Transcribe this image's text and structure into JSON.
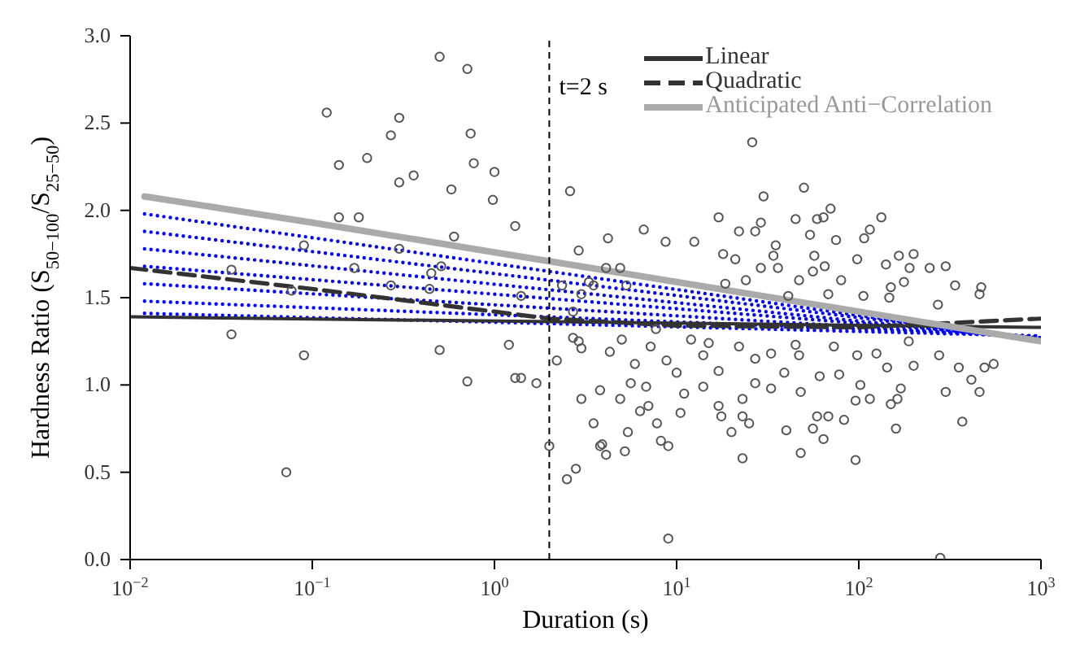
{
  "chart_data": {
    "type": "scatter",
    "xlabel": "Duration (s)",
    "ylabel": "Hardness Ratio (S$_{50−100}$/S$_{25−50}$)",
    "log": "x",
    "xlim": [
      0.01,
      1000
    ],
    "ylim": [
      0,
      3
    ],
    "xticks": [
      {
        "value": 0.01,
        "label": "10$^{−2}$"
      },
      {
        "value": 0.1,
        "label": "10$^{−1}$"
      },
      {
        "value": 1,
        "label": "10$^{0}$"
      },
      {
        "value": 10,
        "label": "10$^{1}$"
      },
      {
        "value": 100,
        "label": "10$^{2}$"
      },
      {
        "value": 1000,
        "label": "10$^{3}$"
      }
    ],
    "yticks": [
      {
        "value": 0,
        "label": "0.0"
      },
      {
        "value": 0.5,
        "label": "0.5"
      },
      {
        "value": 1,
        "label": "1.0"
      },
      {
        "value": 1.5,
        "label": "1.5"
      },
      {
        "value": 2,
        "label": "2.0"
      },
      {
        "value": 2.5,
        "label": "2.5"
      },
      {
        "value": 3,
        "label": "3.0"
      }
    ],
    "grid": false,
    "legend": "top right",
    "ref_lines": [
      {
        "axis": "x",
        "value": 2,
        "label": "t=2 s",
        "color": "#000000",
        "line_style": "dashed"
      }
    ],
    "series": [
      {
        "marker": "circle",
        "color": "#555555",
        "x": [
          0.12,
          0.14,
          0.2,
          0.27,
          0.3,
          0.3,
          0.36,
          0.5,
          0.71,
          0.74,
          0.77,
          0.58,
          1.0,
          0.98,
          1.3,
          0.14,
          0.18,
          0.09,
          0.6,
          0.3,
          0.036,
          0.17,
          0.27,
          0.45,
          0.51,
          0.44,
          0.077,
          1.4,
          2.6,
          2.9,
          2.35,
          3.0,
          3.3,
          2.7,
          0.036,
          0.09,
          0.072,
          0.5,
          1.2,
          0.71,
          1.3,
          1.4,
          1.7,
          2.0,
          2.2,
          2.5,
          2.8,
          2.7,
          2.9,
          3.0,
          3.0,
          3.5,
          3.8,
          3.8,
          26,
          30,
          50,
          70,
          64,
          59,
          133,
          17,
          29,
          27,
          45,
          54,
          115,
          22,
          6.6,
          4.2,
          8.7,
          12.5,
          35,
          75,
          107,
          18,
          21,
          34,
          57,
          166,
          200,
          98,
          141,
          245,
          300,
          190,
          4.1,
          4.9,
          29,
          36,
          56,
          65,
          338,
          470,
          177,
          150,
          272,
          460,
          47,
          80,
          24,
          3.5,
          5.3,
          18.5,
          41,
          68,
          106,
          147,
          4.3,
          5.0,
          7.2,
          5.9,
          8.8,
          10,
          12,
          14,
          17,
          22,
          27,
          33,
          47,
          39,
          61,
          78,
          98,
          125,
          143,
          200,
          276,
          354,
          490,
          550,
          415,
          460,
          300,
          370,
          170,
          150,
          160,
          96,
          83,
          96,
          64,
          59,
          68,
          56,
          48,
          40,
          48,
          33,
          27,
          23,
          25,
          23,
          20,
          17.6,
          23,
          14,
          11,
          10.5,
          9,
          8.2,
          7.8,
          7.0,
          6.3,
          5.4,
          4.9,
          5.2,
          4.1,
          3.9,
          9,
          5.6,
          6.8,
          17,
          163,
          115,
          102,
          280,
          45,
          73,
          188,
          15,
          7.7
        ],
        "values": [
          2.56,
          2.26,
          2.3,
          2.43,
          2.53,
          2.16,
          2.2,
          2.88,
          2.81,
          2.44,
          2.27,
          2.12,
          2.22,
          2.06,
          1.91,
          1.96,
          1.96,
          1.8,
          1.85,
          1.78,
          1.66,
          1.67,
          1.57,
          1.64,
          1.68,
          1.55,
          1.54,
          1.51,
          2.11,
          1.77,
          1.57,
          1.52,
          1.59,
          1.42,
          1.29,
          1.17,
          0.5,
          1.2,
          1.23,
          1.02,
          1.04,
          1.04,
          1.01,
          0.65,
          1.14,
          0.46,
          0.52,
          1.27,
          1.25,
          1.21,
          0.92,
          0.78,
          0.97,
          0.65,
          2.39,
          2.08,
          2.13,
          2.01,
          1.96,
          1.95,
          1.96,
          1.96,
          1.93,
          1.88,
          1.95,
          1.86,
          1.89,
          1.88,
          1.89,
          1.84,
          1.82,
          1.82,
          1.8,
          1.83,
          1.84,
          1.75,
          1.72,
          1.74,
          1.74,
          1.74,
          1.75,
          1.72,
          1.69,
          1.67,
          1.68,
          1.67,
          1.67,
          1.67,
          1.67,
          1.67,
          1.65,
          1.68,
          1.57,
          1.56,
          1.59,
          1.56,
          1.46,
          1.52,
          1.6,
          1.6,
          1.6,
          1.57,
          1.57,
          1.58,
          1.51,
          1.52,
          1.51,
          1.5,
          1.19,
          1.26,
          1.22,
          1.12,
          1.14,
          1.07,
          1.26,
          1.17,
          1.08,
          1.22,
          1.15,
          1.18,
          1.17,
          1.07,
          1.05,
          1.06,
          1.17,
          1.18,
          1.1,
          1.11,
          1.17,
          1.1,
          1.1,
          1.12,
          1.03,
          0.96,
          0.96,
          0.79,
          0.98,
          0.89,
          0.75,
          0.91,
          0.8,
          0.57,
          0.69,
          0.82,
          0.82,
          0.75,
          0.61,
          0.74,
          0.96,
          0.98,
          1.01,
          0.92,
          0.78,
          0.58,
          0.73,
          0.82,
          0.82,
          0.99,
          0.95,
          0.84,
          0.65,
          0.68,
          0.78,
          0.88,
          0.85,
          0.73,
          0.92,
          0.62,
          0.6,
          0.66,
          0.12,
          1.01,
          0.99,
          0.88,
          0.92,
          0.92,
          1.0,
          0.01,
          1.23,
          1.22,
          1.25,
          1.24,
          1.32
        ]
      },
      {
        "type": "line",
        "color": "#0000ff",
        "line_style": "dotted",
        "x": [
          0.012,
          1000
        ],
        "values": [
          1.98,
          1.25
        ]
      },
      {
        "type": "line",
        "color": "#0000ff",
        "line_style": "dotted",
        "x": [
          0.012,
          1000
        ],
        "values": [
          1.88,
          1.26
        ]
      },
      {
        "type": "line",
        "color": "#0000ff",
        "line_style": "dotted",
        "x": [
          0.012,
          1000
        ],
        "values": [
          1.78,
          1.26
        ]
      },
      {
        "type": "line",
        "color": "#0000ff",
        "line_style": "dotted",
        "x": [
          0.012,
          1000
        ],
        "values": [
          1.68,
          1.27
        ]
      },
      {
        "type": "line",
        "color": "#0000ff",
        "line_style": "dotted",
        "x": [
          0.012,
          1000
        ],
        "values": [
          1.58,
          1.27
        ]
      },
      {
        "type": "line",
        "color": "#0000ff",
        "line_style": "dotted",
        "x": [
          0.012,
          1000
        ],
        "values": [
          1.48,
          1.28
        ]
      },
      {
        "type": "line",
        "color": "#0000ff",
        "line_style": "dotted",
        "x": [
          0.012,
          1000
        ],
        "values": [
          1.41,
          1.28
        ]
      },
      {
        "type": "line",
        "name": "Linear",
        "color": "#333333",
        "line_style": "solid",
        "x": [
          0.01,
          1000
        ],
        "values": [
          1.39,
          1.33
        ]
      },
      {
        "type": "line",
        "name": "Quadratic",
        "color": "#333333",
        "line_style": "dashed",
        "x": [
          0.01,
          0.1,
          1,
          2,
          10,
          100,
          1000
        ],
        "values": [
          1.67,
          1.55,
          1.42,
          1.38,
          1.34,
          1.33,
          1.38
        ]
      },
      {
        "type": "line",
        "name": "Anticipated Anti−Correlation",
        "color": "#aaaaaa",
        "line_style": "solid",
        "x": [
          0.012,
          0.1,
          1,
          10,
          100,
          1000
        ],
        "values": [
          2.08,
          1.93,
          1.76,
          1.59,
          1.42,
          1.25
        ]
      }
    ]
  }
}
